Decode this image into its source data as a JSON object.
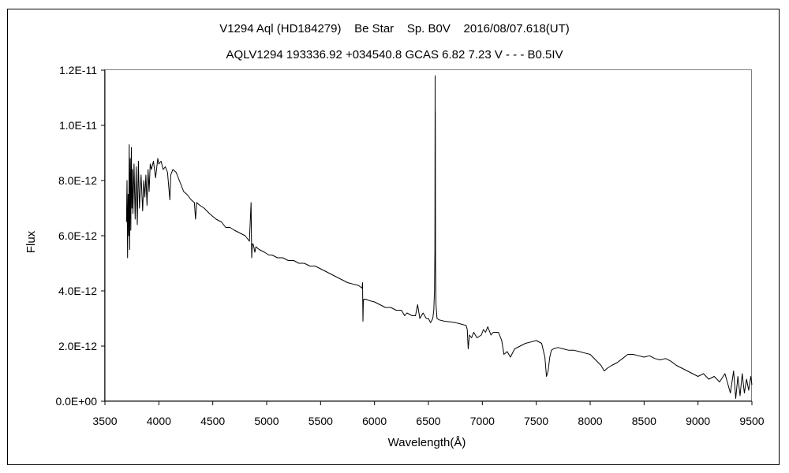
{
  "chart_data": {
    "type": "line",
    "title": "V1294 Aql (HD184279)    Be Star    Sp. B0V    2016/08/07.618(UT)",
    "subtitle": "AQLV1294 193336.92 +034540.8 GCAS 6.82 7.23 V - - - B0.5IV",
    "xlabel": "Wavelength(Å)",
    "ylabel": "Flux",
    "xlim": [
      3500,
      9500
    ],
    "ylim": [
      0,
      1.2e-11
    ],
    "x_ticks": [
      3500,
      4000,
      4500,
      5000,
      5500,
      6000,
      6500,
      7000,
      7500,
      8000,
      8500,
      9000,
      9500
    ],
    "x_tick_labels": [
      "3500",
      "4000",
      "4500",
      "5000",
      "5500",
      "6000",
      "6500",
      "7000",
      "7500",
      "8000",
      "8500",
      "9000",
      "9500"
    ],
    "y_ticks": [
      0,
      2e-12,
      4e-12,
      6e-12,
      8e-12,
      1e-11,
      1.2e-11
    ],
    "y_tick_labels": [
      "0.0E+00",
      "2.0E-12",
      "4.0E-12",
      "6.0E-12",
      "8.0E-12",
      "1.0E-11",
      "1.2E-11"
    ],
    "grid": false,
    "legend": "none",
    "line_color": "#000000",
    "series": [
      {
        "x": [
          3700,
          3705,
          3710,
          3715,
          3720,
          3725,
          3730,
          3735,
          3740,
          3745,
          3750,
          3755,
          3760,
          3770,
          3780,
          3790,
          3800,
          3810,
          3820,
          3835,
          3850,
          3860,
          3870,
          3880,
          3890,
          3900,
          3910,
          3920,
          3930,
          3950,
          3970,
          3990,
          4000,
          4020,
          4040,
          4060,
          4080,
          4102,
          4110,
          4130,
          4160,
          4190,
          4230,
          4260,
          4300,
          4330,
          4340,
          4350,
          4380,
          4420,
          4470,
          4500,
          4530,
          4580,
          4620,
          4660,
          4700,
          4750,
          4800,
          4840,
          4855,
          4861,
          4867,
          4875,
          4890,
          4900,
          4930,
          4980,
          5020,
          5050,
          5100,
          5150,
          5200,
          5250,
          5300,
          5350,
          5400,
          5450,
          5500,
          5550,
          5600,
          5650,
          5700,
          5750,
          5800,
          5850,
          5885,
          5889,
          5893,
          5896,
          5900,
          5920,
          5950,
          6000,
          6050,
          6100,
          6150,
          6200,
          6250,
          6280,
          6300,
          6350,
          6380,
          6400,
          6420,
          6450,
          6480,
          6500,
          6520,
          6540,
          6550,
          6556,
          6560,
          6562,
          6563,
          6564,
          6566,
          6570,
          6580,
          6600,
          6650,
          6700,
          6750,
          6800,
          6850,
          6860,
          6869,
          6880,
          6900,
          6920,
          6950,
          6990,
          7010,
          7030,
          7050,
          7080,
          7100,
          7150,
          7180,
          7200,
          7230,
          7260,
          7300,
          7350,
          7400,
          7450,
          7500,
          7550,
          7580,
          7595,
          7610,
          7625,
          7640,
          7660,
          7700,
          7750,
          7800,
          7850,
          7900,
          7950,
          8000,
          8050,
          8100,
          8130,
          8160,
          8200,
          8250,
          8300,
          8350,
          8400,
          8450,
          8500,
          8550,
          8600,
          8650,
          8700,
          8750,
          8800,
          8850,
          8900,
          8950,
          9000,
          9050,
          9100,
          9150,
          9200,
          9250,
          9300,
          9330,
          9350,
          9370,
          9390,
          9410,
          9430,
          9450,
          9470,
          9490,
          9500
        ],
        "y": [
          6.5e-12,
          8e-12,
          5.2e-12,
          7.5e-12,
          6e-12,
          9.3e-12,
          5.5e-12,
          8.8e-12,
          6.2e-12,
          9.2e-12,
          7e-12,
          8.4e-12,
          6.8e-12,
          8.6e-12,
          6.6e-12,
          8.5e-12,
          6.4e-12,
          8.7e-12,
          7e-12,
          8.2e-12,
          6.9e-12,
          8e-12,
          7.4e-12,
          8.2e-12,
          7.1e-12,
          8.4e-12,
          7.6e-12,
          8.6e-12,
          8.4e-12,
          8.7e-12,
          8.1e-12,
          8.8e-12,
          8.6e-12,
          8.7e-12,
          8.4e-12,
          8.5e-12,
          8.3e-12,
          7.3e-12,
          8.2e-12,
          8.4e-12,
          8.3e-12,
          8e-12,
          7.6e-12,
          7.5e-12,
          7.3e-12,
          7.2e-12,
          6.6e-12,
          7.2e-12,
          7.1e-12,
          7e-12,
          6.8e-12,
          6.7e-12,
          6.6e-12,
          6.5e-12,
          6.3e-12,
          6.3e-12,
          6.2e-12,
          6.1e-12,
          6e-12,
          5.8e-12,
          7.2e-12,
          5.2e-12,
          5.7e-12,
          5.7e-12,
          5.4e-12,
          5.6e-12,
          5.5e-12,
          5.4e-12,
          5.3e-12,
          5.3e-12,
          5.2e-12,
          5.2e-12,
          5.1e-12,
          5.1e-12,
          5e-12,
          5e-12,
          4.9e-12,
          4.9e-12,
          4.8e-12,
          4.7e-12,
          4.6e-12,
          4.5e-12,
          4.4e-12,
          4.3e-12,
          4.25e-12,
          4.2e-12,
          4.1e-12,
          4.3e-12,
          2.9e-12,
          3.6e-12,
          3.7e-12,
          3.7e-12,
          3.65e-12,
          3.6e-12,
          3.5e-12,
          3.4e-12,
          3.4e-12,
          3.3e-12,
          3.3e-12,
          3.1e-12,
          3.2e-12,
          3.1e-12,
          3.1e-12,
          3.5e-12,
          3e-12,
          3.2e-12,
          3e-12,
          3e-12,
          2.85e-12,
          3e-12,
          3.3e-12,
          4e-12,
          5.5e-12,
          1.18e-11,
          9e-12,
          1.05e-11,
          5e-12,
          3.5e-12,
          3e-12,
          2.95e-12,
          2.9e-12,
          2.88e-12,
          2.85e-12,
          2.8e-12,
          2.75e-12,
          2.6e-12,
          1.9e-12,
          2.4e-12,
          2.3e-12,
          2.5e-12,
          2.3e-12,
          2.4e-12,
          2.6e-12,
          2.5e-12,
          2.7e-12,
          2.4e-12,
          2.5e-12,
          2.5e-12,
          2.2e-12,
          1.7e-12,
          1.8e-12,
          1.6e-12,
          1.9e-12,
          2e-12,
          2.1e-12,
          2.15e-12,
          2.2e-12,
          2.1e-12,
          1.6e-12,
          9e-13,
          1.1e-12,
          1.6e-12,
          1.85e-12,
          1.9e-12,
          1.95e-12,
          1.9e-12,
          1.85e-12,
          1.85e-12,
          1.8e-12,
          1.75e-12,
          1.7e-12,
          1.5e-12,
          1.3e-12,
          1.1e-12,
          1.2e-12,
          1.3e-12,
          1.4e-12,
          1.55e-12,
          1.7e-12,
          1.7e-12,
          1.65e-12,
          1.6e-12,
          1.65e-12,
          1.55e-12,
          1.5e-12,
          1.55e-12,
          1.45e-12,
          1.3e-12,
          1.2e-12,
          1.1e-12,
          1e-12,
          9e-13,
          1e-12,
          8e-13,
          9e-13,
          7e-13,
          1e-12,
          3e-13,
          1.1e-12,
          1e-13,
          9e-13,
          2e-13,
          1e-12,
          3e-13,
          8e-13,
          4e-13,
          9e-13,
          6e-13
        ]
      }
    ]
  }
}
